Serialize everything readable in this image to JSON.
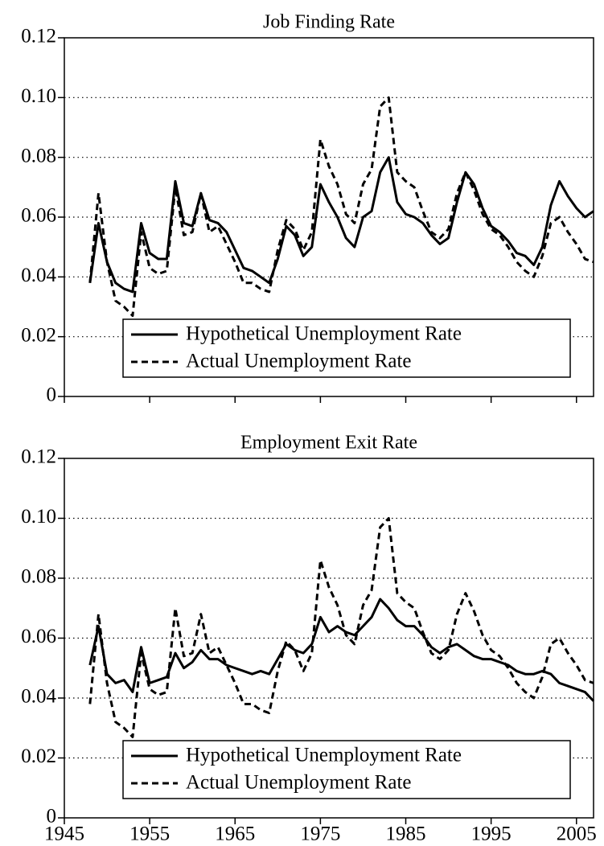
{
  "chart_data": [
    {
      "type": "line",
      "title": "Job Finding Rate",
      "x": [
        1948,
        1949,
        1950,
        1951,
        1952,
        1953,
        1954,
        1955,
        1956,
        1957,
        1958,
        1959,
        1960,
        1961,
        1962,
        1963,
        1964,
        1965,
        1966,
        1967,
        1968,
        1969,
        1970,
        1971,
        1972,
        1973,
        1974,
        1975,
        1976,
        1977,
        1978,
        1979,
        1980,
        1981,
        1982,
        1983,
        1984,
        1985,
        1986,
        1987,
        1988,
        1989,
        1990,
        1991,
        1992,
        1993,
        1994,
        1995,
        1996,
        1997,
        1998,
        1999,
        2000,
        2001,
        2002,
        2003,
        2004,
        2005,
        2006,
        2007
      ],
      "series": [
        {
          "name": "Hypothetical Unemployment Rate",
          "color": "#000000",
          "dash": false,
          "values": [
            0.038,
            0.058,
            0.045,
            0.038,
            0.036,
            0.035,
            0.058,
            0.048,
            0.046,
            0.046,
            0.072,
            0.058,
            0.057,
            0.068,
            0.059,
            0.058,
            0.055,
            0.049,
            0.043,
            0.042,
            0.04,
            0.038,
            0.046,
            0.057,
            0.054,
            0.047,
            0.05,
            0.071,
            0.065,
            0.06,
            0.053,
            0.05,
            0.06,
            0.062,
            0.075,
            0.08,
            0.065,
            0.061,
            0.06,
            0.058,
            0.054,
            0.051,
            0.053,
            0.065,
            0.075,
            0.071,
            0.063,
            0.057,
            0.055,
            0.052,
            0.048,
            0.047,
            0.044,
            0.05,
            0.064,
            0.072,
            0.067,
            0.063,
            0.06,
            0.062
          ]
        },
        {
          "name": "Actual Unemployment Rate",
          "color": "#000000",
          "dash": true,
          "values": [
            0.038,
            0.068,
            0.045,
            0.032,
            0.03,
            0.027,
            0.055,
            0.043,
            0.041,
            0.042,
            0.07,
            0.054,
            0.055,
            0.068,
            0.055,
            0.057,
            0.051,
            0.045,
            0.038,
            0.038,
            0.036,
            0.035,
            0.049,
            0.059,
            0.056,
            0.049,
            0.055,
            0.086,
            0.077,
            0.071,
            0.061,
            0.058,
            0.071,
            0.076,
            0.097,
            0.1,
            0.075,
            0.072,
            0.07,
            0.062,
            0.055,
            0.053,
            0.056,
            0.068,
            0.075,
            0.069,
            0.061,
            0.056,
            0.054,
            0.05,
            0.045,
            0.042,
            0.04,
            0.047,
            0.058,
            0.06,
            0.055,
            0.051,
            0.046,
            0.045
          ]
        }
      ],
      "xlim": [
        1945,
        2007
      ],
      "xticks": [
        1945,
        1955,
        1965,
        1975,
        1985,
        1995,
        2005
      ],
      "xticklabels": false,
      "ylim": [
        0,
        0.12
      ],
      "yticks": [
        0,
        0.02,
        0.04,
        0.06,
        0.08,
        {
          "value": 0.1,
          "label": "0.10"
        },
        0.12
      ],
      "grid": true,
      "legend": "lower center"
    },
    {
      "type": "line",
      "title": "Employment Exit Rate",
      "x": [
        1948,
        1949,
        1950,
        1951,
        1952,
        1953,
        1954,
        1955,
        1956,
        1957,
        1958,
        1959,
        1960,
        1961,
        1962,
        1963,
        1964,
        1965,
        1966,
        1967,
        1968,
        1969,
        1970,
        1971,
        1972,
        1973,
        1974,
        1975,
        1976,
        1977,
        1978,
        1979,
        1980,
        1981,
        1982,
        1983,
        1984,
        1985,
        1986,
        1987,
        1988,
        1989,
        1990,
        1991,
        1992,
        1993,
        1994,
        1995,
        1996,
        1997,
        1998,
        1999,
        2000,
        2001,
        2002,
        2003,
        2004,
        2005,
        2006,
        2007
      ],
      "series": [
        {
          "name": "Hypothetical Unemployment Rate",
          "color": "#000000",
          "dash": false,
          "values": [
            0.051,
            0.064,
            0.048,
            0.045,
            0.046,
            0.042,
            0.057,
            0.045,
            0.046,
            0.047,
            0.055,
            0.05,
            0.052,
            0.056,
            0.053,
            0.053,
            0.051,
            0.05,
            0.049,
            0.048,
            0.049,
            0.048,
            0.053,
            0.058,
            0.056,
            0.055,
            0.058,
            0.067,
            0.062,
            0.064,
            0.062,
            0.061,
            0.064,
            0.067,
            0.073,
            0.07,
            0.066,
            0.064,
            0.064,
            0.061,
            0.057,
            0.055,
            0.057,
            0.058,
            0.056,
            0.054,
            0.053,
            0.053,
            0.052,
            0.051,
            0.049,
            0.048,
            0.048,
            0.049,
            0.048,
            0.045,
            0.044,
            0.043,
            0.042,
            0.039
          ]
        },
        {
          "name": "Actual Unemployment Rate",
          "color": "#000000",
          "dash": true,
          "values": [
            0.038,
            0.068,
            0.045,
            0.032,
            0.03,
            0.027,
            0.055,
            0.043,
            0.041,
            0.042,
            0.07,
            0.054,
            0.055,
            0.068,
            0.055,
            0.057,
            0.051,
            0.045,
            0.038,
            0.038,
            0.036,
            0.035,
            0.049,
            0.059,
            0.056,
            0.049,
            0.055,
            0.086,
            0.077,
            0.071,
            0.061,
            0.058,
            0.071,
            0.076,
            0.097,
            0.1,
            0.075,
            0.072,
            0.07,
            0.062,
            0.055,
            0.053,
            0.056,
            0.068,
            0.075,
            0.069,
            0.061,
            0.056,
            0.054,
            0.05,
            0.045,
            0.042,
            0.04,
            0.047,
            0.058,
            0.06,
            0.055,
            0.051,
            0.046,
            0.045
          ]
        }
      ],
      "xlim": [
        1945,
        2007
      ],
      "xticks": [
        1945,
        1955,
        1965,
        1975,
        1985,
        1995,
        2005
      ],
      "xticklabels": true,
      "ylim": [
        0,
        0.12
      ],
      "yticks": [
        0,
        0.02,
        0.04,
        0.06,
        0.08,
        {
          "value": 0.1,
          "label": "0.10"
        },
        0.12
      ],
      "grid": true,
      "legend": "lower center"
    }
  ]
}
